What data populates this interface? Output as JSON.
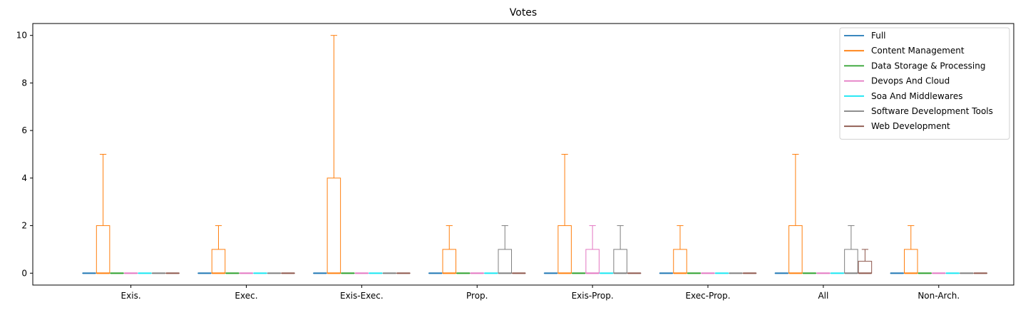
{
  "chart_data": {
    "type": "box",
    "title": "Votes",
    "xlabel": "",
    "ylabel": "",
    "categories": [
      "Exis.",
      "Exec.",
      "Exis-Exec.",
      "Prop.",
      "Exis-Prop.",
      "Exec-Prop.",
      "All",
      "Non-Arch."
    ],
    "yticks": [
      "0",
      "2",
      "4",
      "6",
      "8",
      "10"
    ],
    "ylim": [
      -0.5,
      10.5
    ],
    "legend_position": "top-right",
    "grid": false,
    "series": [
      {
        "name": "Full",
        "color": "#1f77b4",
        "boxes": [
          {
            "q1": 0,
            "q3": 0,
            "low": 0,
            "high": 0
          },
          {
            "q1": 0,
            "q3": 0,
            "low": 0,
            "high": 0
          },
          {
            "q1": 0,
            "q3": 0,
            "low": 0,
            "high": 0
          },
          {
            "q1": 0,
            "q3": 0,
            "low": 0,
            "high": 0
          },
          {
            "q1": 0,
            "q3": 0,
            "low": 0,
            "high": 0
          },
          {
            "q1": 0,
            "q3": 0,
            "low": 0,
            "high": 0
          },
          {
            "q1": 0,
            "q3": 0,
            "low": 0,
            "high": 0
          },
          {
            "q1": 0,
            "q3": 0,
            "low": 0,
            "high": 0
          }
        ]
      },
      {
        "name": "Content Management",
        "color": "#ff7f0e",
        "boxes": [
          {
            "q1": 0,
            "q3": 2,
            "low": 0,
            "high": 5
          },
          {
            "q1": 0,
            "q3": 1,
            "low": 0,
            "high": 2
          },
          {
            "q1": 0,
            "q3": 4,
            "low": 0,
            "high": 10
          },
          {
            "q1": 0,
            "q3": 1,
            "low": 0,
            "high": 2
          },
          {
            "q1": 0,
            "q3": 2,
            "low": 0,
            "high": 5
          },
          {
            "q1": 0,
            "q3": 1,
            "low": 0,
            "high": 2
          },
          {
            "q1": 0,
            "q3": 2,
            "low": 0,
            "high": 5
          },
          {
            "q1": 0,
            "q3": 1,
            "low": 0,
            "high": 2
          }
        ]
      },
      {
        "name": "Data Storage & Processing",
        "color": "#2ca02c",
        "boxes": [
          {
            "q1": 0,
            "q3": 0,
            "low": 0,
            "high": 0
          },
          {
            "q1": 0,
            "q3": 0,
            "low": 0,
            "high": 0
          },
          {
            "q1": 0,
            "q3": 0,
            "low": 0,
            "high": 0
          },
          {
            "q1": 0,
            "q3": 0,
            "low": 0,
            "high": 0
          },
          {
            "q1": 0,
            "q3": 0,
            "low": 0,
            "high": 0
          },
          {
            "q1": 0,
            "q3": 0,
            "low": 0,
            "high": 0
          },
          {
            "q1": 0,
            "q3": 0,
            "low": 0,
            "high": 0
          },
          {
            "q1": 0,
            "q3": 0,
            "low": 0,
            "high": 0
          }
        ]
      },
      {
        "name": "Devops And Cloud",
        "color": "#e377c2",
        "boxes": [
          {
            "q1": 0,
            "q3": 0,
            "low": 0,
            "high": 0
          },
          {
            "q1": 0,
            "q3": 0,
            "low": 0,
            "high": 0
          },
          {
            "q1": 0,
            "q3": 0,
            "low": 0,
            "high": 0
          },
          {
            "q1": 0,
            "q3": 0,
            "low": 0,
            "high": 0
          },
          {
            "q1": 0,
            "q3": 1,
            "low": 0,
            "high": 2
          },
          {
            "q1": 0,
            "q3": 0,
            "low": 0,
            "high": 0
          },
          {
            "q1": 0,
            "q3": 0,
            "low": 0,
            "high": 0
          },
          {
            "q1": 0,
            "q3": 0,
            "low": 0,
            "high": 0
          }
        ]
      },
      {
        "name": "Soa And Middlewares",
        "color": "#17e6f2",
        "boxes": [
          {
            "q1": 0,
            "q3": 0,
            "low": 0,
            "high": 0
          },
          {
            "q1": 0,
            "q3": 0,
            "low": 0,
            "high": 0
          },
          {
            "q1": 0,
            "q3": 0,
            "low": 0,
            "high": 0
          },
          {
            "q1": 0,
            "q3": 0,
            "low": 0,
            "high": 0
          },
          {
            "q1": 0,
            "q3": 0,
            "low": 0,
            "high": 0
          },
          {
            "q1": 0,
            "q3": 0,
            "low": 0,
            "high": 0
          },
          {
            "q1": 0,
            "q3": 0,
            "low": 0,
            "high": 0
          },
          {
            "q1": 0,
            "q3": 0,
            "low": 0,
            "high": 0
          }
        ]
      },
      {
        "name": "Software Development Tools",
        "color": "#7f7f7f",
        "boxes": [
          {
            "q1": 0,
            "q3": 0,
            "low": 0,
            "high": 0
          },
          {
            "q1": 0,
            "q3": 0,
            "low": 0,
            "high": 0
          },
          {
            "q1": 0,
            "q3": 0,
            "low": 0,
            "high": 0
          },
          {
            "q1": 0,
            "q3": 1,
            "low": 0,
            "high": 2
          },
          {
            "q1": 0,
            "q3": 1,
            "low": 0,
            "high": 2
          },
          {
            "q1": 0,
            "q3": 0,
            "low": 0,
            "high": 0
          },
          {
            "q1": 0,
            "q3": 1,
            "low": 0,
            "high": 2
          },
          {
            "q1": 0,
            "q3": 0,
            "low": 0,
            "high": 0
          }
        ]
      },
      {
        "name": "Web Development",
        "color": "#8c564b",
        "boxes": [
          {
            "q1": 0,
            "q3": 0,
            "low": 0,
            "high": 0
          },
          {
            "q1": 0,
            "q3": 0,
            "low": 0,
            "high": 0
          },
          {
            "q1": 0,
            "q3": 0,
            "low": 0,
            "high": 0
          },
          {
            "q1": 0,
            "q3": 0,
            "low": 0,
            "high": 0
          },
          {
            "q1": 0,
            "q3": 0,
            "low": 0,
            "high": 0
          },
          {
            "q1": 0,
            "q3": 0,
            "low": 0,
            "high": 0
          },
          {
            "q1": 0,
            "q3": 0.5,
            "low": 0,
            "high": 1
          },
          {
            "q1": 0,
            "q3": 0,
            "low": 0,
            "high": 0
          }
        ]
      }
    ]
  }
}
